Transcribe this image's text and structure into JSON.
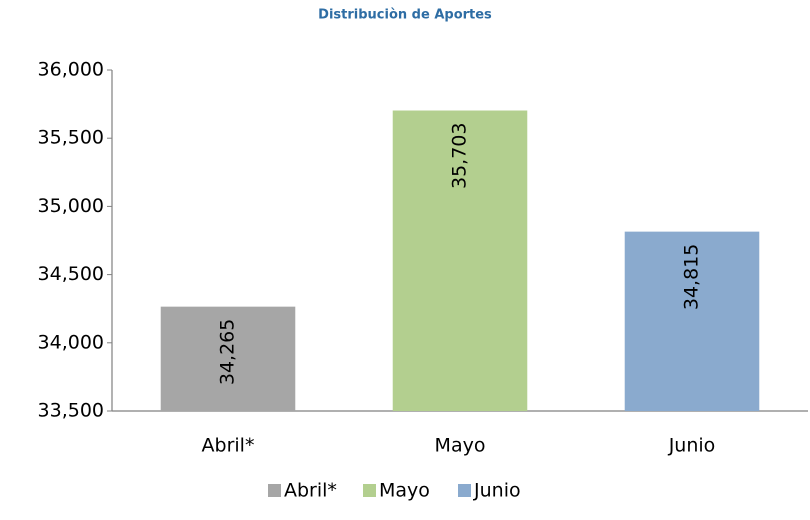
{
  "chart_data": {
    "type": "bar",
    "title": "Distribuciòn de Aportes",
    "categories": [
      "Abril*",
      "Mayo",
      "Junio"
    ],
    "values": [
      34265,
      35703,
      34815
    ],
    "value_labels": [
      "34,265",
      "35,703",
      "34,815"
    ],
    "colors": [
      "#a6a6a6",
      "#b3cf8f",
      "#8aaace"
    ],
    "ylim": [
      33500,
      36000
    ],
    "yticks": [
      {
        "value": 33500,
        "label": "33,500"
      },
      {
        "value": 34000,
        "label": "34,000"
      },
      {
        "value": 34500,
        "label": "34,500"
      },
      {
        "value": 35000,
        "label": "35,000"
      },
      {
        "value": 35500,
        "label": "35,500"
      },
      {
        "value": 36000,
        "label": "36,000"
      }
    ],
    "grid": false,
    "legend": "bottom"
  }
}
